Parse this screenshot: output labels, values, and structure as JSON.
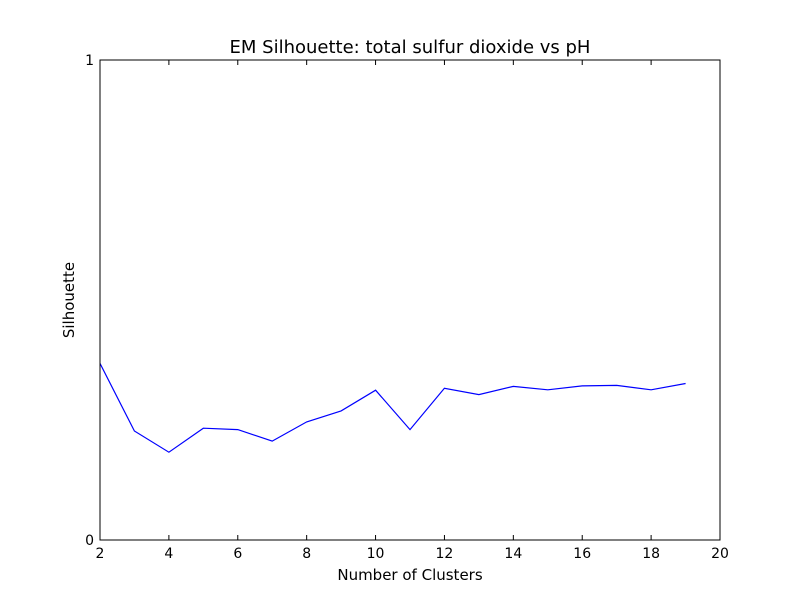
{
  "chart_data": {
    "type": "line",
    "title": "EM Silhouette: total sulfur dioxide vs pH",
    "xlabel": "Number of Clusters",
    "ylabel": "Silhouette",
    "xlim": [
      2,
      20
    ],
    "ylim": [
      0,
      1
    ],
    "xticks": [
      "2",
      "4",
      "6",
      "8",
      "10",
      "12",
      "14",
      "16",
      "18",
      "20"
    ],
    "yticks": [
      "0",
      "1"
    ],
    "grid": false,
    "series": [
      {
        "color": "#0000ff",
        "x": [
          2,
          3,
          4,
          5,
          6,
          7,
          8,
          9,
          10,
          11,
          12,
          13,
          14,
          15,
          16,
          17,
          18,
          19
        ],
        "y": [
          0.368,
          0.227,
          0.183,
          0.233,
          0.23,
          0.206,
          0.246,
          0.269,
          0.312,
          0.23,
          0.316,
          0.303,
          0.32,
          0.313,
          0.321,
          0.322,
          0.313,
          0.326
        ]
      }
    ]
  }
}
